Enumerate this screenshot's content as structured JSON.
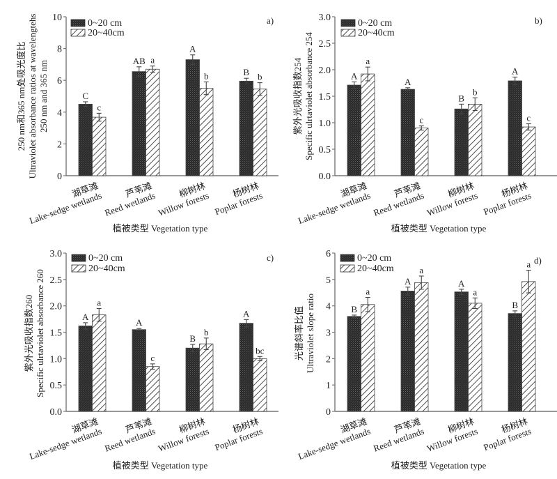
{
  "figure": {
    "legend": [
      "0~20 cm",
      "20~40cm"
    ],
    "xlabel": "植被类型 Vegetation type",
    "categories": [
      {
        "cn": "湖草滩",
        "en": "Lake-sedge wetlands"
      },
      {
        "cn": "芦苇滩",
        "en": "Reed wetlands"
      },
      {
        "cn": "柳树林",
        "en": "Willow forests"
      },
      {
        "cn": "杨树林",
        "en": "Poplar forests"
      }
    ]
  },
  "chart_data": [
    {
      "type": "bar",
      "panel": "a)",
      "title": "",
      "ylabel_lines": [
        "250 nm和365 nm处吸光度比",
        "Ultraviolet absorbance ratios at wavelengtehs",
        "250 nm and 365 nm"
      ],
      "xlabel": "植被类型 Vegetation type",
      "categories": [
        "湖草滩 Lake-sedge wetlands",
        "芦苇滩 Reed wetlands",
        "柳树林 Willow forests",
        "杨树林 Poplar forests"
      ],
      "ylim": [
        0,
        10
      ],
      "yticks": [
        0,
        2,
        4,
        6,
        8,
        10
      ],
      "ytick_labels": [
        "0",
        "2",
        "4",
        "6",
        "8",
        "10"
      ],
      "legend_position": "top-left",
      "series": [
        {
          "name": "0~20 cm",
          "values": [
            4.5,
            6.55,
            7.3,
            5.95
          ],
          "errors": [
            0.15,
            0.3,
            0.3,
            0.18
          ],
          "letters": [
            "C",
            "AB",
            "A",
            "B"
          ]
        },
        {
          "name": "20~40cm",
          "values": [
            3.68,
            6.7,
            5.5,
            5.45
          ],
          "errors": [
            0.25,
            0.2,
            0.4,
            0.4
          ],
          "letters": [
            "c",
            "a",
            "b",
            "b"
          ]
        }
      ]
    },
    {
      "type": "bar",
      "panel": "b)",
      "title": "",
      "ylabel_lines": [
        "紫外光吸收指数254",
        "Specific ulrtaviolet absorbance 254"
      ],
      "xlabel": "植被类型 Vegetation type",
      "categories": [
        "湖草滩 Lake-sedge wetlands",
        "芦苇滩 Reed wetlands",
        "柳树林 Willow forests",
        "杨树林 Poplar forests"
      ],
      "ylim": [
        0,
        3
      ],
      "yticks": [
        0,
        0.5,
        1,
        1.5,
        2,
        2.5,
        3
      ],
      "ytick_labels": [
        "0.0",
        "0.5",
        "1.0",
        "1.5",
        "2.0",
        "2.5",
        "3.0"
      ],
      "legend_position": "top-left",
      "series": [
        {
          "name": "0~20 cm",
          "values": [
            1.71,
            1.63,
            1.26,
            1.79
          ],
          "errors": [
            0.06,
            0.03,
            0.09,
            0.07
          ],
          "letters": [
            "A",
            "A",
            "B",
            "A"
          ]
        },
        {
          "name": "20~40cm",
          "values": [
            1.92,
            0.9,
            1.35,
            0.92
          ],
          "errors": [
            0.13,
            0.04,
            0.12,
            0.06
          ],
          "letters": [
            "a",
            "c",
            "b",
            "c"
          ]
        }
      ]
    },
    {
      "type": "bar",
      "panel": "c)",
      "title": "",
      "ylabel_lines": [
        "紫外光吸收指数260",
        "Specific ulrtaviolet absorbance 260"
      ],
      "xlabel": "植被类型 Vegetation type",
      "categories": [
        "湖草滩 Lake-sedge wetlands",
        "芦苇滩 Reed wetlands",
        "柳树林 Willow forests",
        "杨树林 Poplar forests"
      ],
      "ylim": [
        0,
        3
      ],
      "yticks": [
        0,
        0.5,
        1,
        1.5,
        2,
        2.5,
        3
      ],
      "ytick_labels": [
        "0.0",
        "0.5",
        "1.0",
        "1.5",
        "2.0",
        "2.5",
        "3.0"
      ],
      "legend_position": "top-left",
      "series": [
        {
          "name": "0~20 cm",
          "values": [
            1.62,
            1.55,
            1.2,
            1.67
          ],
          "errors": [
            0.06,
            0.02,
            0.07,
            0.07
          ],
          "letters": [
            "A",
            "A",
            "B",
            "A"
          ]
        },
        {
          "name": "20~40cm",
          "values": [
            1.83,
            0.85,
            1.28,
            1.0
          ],
          "errors": [
            0.12,
            0.05,
            0.11,
            0.04
          ],
          "letters": [
            "a",
            "c",
            "b",
            "bc"
          ]
        }
      ]
    },
    {
      "type": "bar",
      "panel": "d)",
      "title": "",
      "ylabel_lines": [
        "光谱斜率比值",
        "Ultraviolet slope ratio"
      ],
      "xlabel": "植被类型 Vegetation type",
      "categories": [
        "湖草滩 Lake-sedge wetlands",
        "芦苇滩 Reed wetlands",
        "柳树林 Willow forests",
        "杨树林 Poplar forests"
      ],
      "ylim": [
        0,
        6
      ],
      "yticks": [
        0,
        1,
        2,
        3,
        4,
        5,
        6
      ],
      "ytick_labels": [
        "0",
        "1",
        "2",
        "3",
        "4",
        "5",
        "6"
      ],
      "legend_position": "top-left",
      "series": [
        {
          "name": "0~20 cm",
          "values": [
            3.6,
            4.56,
            4.53,
            3.71
          ],
          "errors": [
            0.05,
            0.15,
            0.1,
            0.1
          ],
          "letters": [
            "B",
            "A",
            "A",
            "B"
          ]
        },
        {
          "name": "20~40cm",
          "values": [
            4.05,
            4.88,
            4.1,
            4.92
          ],
          "errors": [
            0.27,
            0.25,
            0.2,
            0.43
          ],
          "letters": [
            "a",
            "a",
            "a",
            "a"
          ]
        }
      ]
    }
  ]
}
